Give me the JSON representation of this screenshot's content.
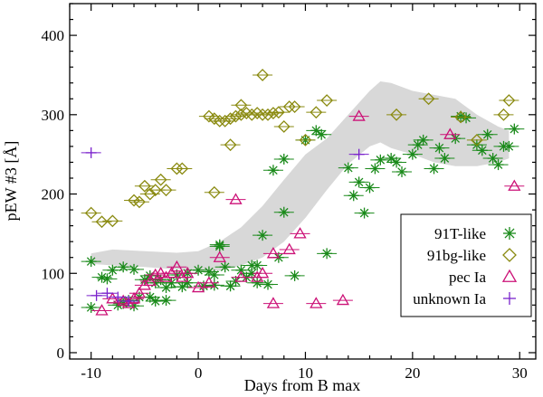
{
  "chart_data": {
    "type": "scatter",
    "title": "",
    "xlabel": "Days from B max",
    "ylabel": "pEW #3 [Å]",
    "xlim": [
      -12,
      31.5
    ],
    "ylim": [
      -8,
      440
    ],
    "xticks": [
      -10,
      0,
      10,
      20,
      30
    ],
    "yticks": [
      0,
      100,
      200,
      300,
      400
    ],
    "xtick_labels": [
      "-10",
      "0",
      "10",
      "20",
      "30"
    ],
    "ytick_labels": [
      "0",
      "100",
      "200",
      "300",
      "400"
    ],
    "legend_position": "bottom-right",
    "band": {
      "color": "#d8d8d8",
      "upper": [
        [
          -10,
          125
        ],
        [
          -8,
          130
        ],
        [
          -5,
          128
        ],
        [
          -2,
          126
        ],
        [
          0,
          128
        ],
        [
          2,
          140
        ],
        [
          4,
          158
        ],
        [
          6,
          185
        ],
        [
          8,
          218
        ],
        [
          10,
          250
        ],
        [
          12,
          270
        ],
        [
          14,
          300
        ],
        [
          16,
          330
        ],
        [
          17,
          342
        ],
        [
          18,
          340
        ],
        [
          20,
          330
        ],
        [
          22,
          325
        ],
        [
          24,
          320
        ],
        [
          26,
          300
        ],
        [
          28,
          285
        ],
        [
          29,
          280
        ]
      ],
      "lower": [
        [
          29,
          245
        ],
        [
          28,
          240
        ],
        [
          26,
          235
        ],
        [
          24,
          235
        ],
        [
          22,
          240
        ],
        [
          20,
          250
        ],
        [
          18,
          258
        ],
        [
          17,
          265
        ],
        [
          16,
          260
        ],
        [
          14,
          238
        ],
        [
          12,
          205
        ],
        [
          10,
          170
        ],
        [
          8,
          140
        ],
        [
          6,
          120
        ],
        [
          4,
          110
        ],
        [
          2,
          103
        ],
        [
          0,
          103
        ],
        [
          -2,
          105
        ],
        [
          -5,
          108
        ],
        [
          -8,
          110
        ],
        [
          -10,
          112
        ]
      ]
    },
    "series": [
      {
        "name": "91T-like",
        "marker": "asterisk",
        "color": "#1a8a1a",
        "points": [
          [
            -10,
            115
          ],
          [
            -10,
            57
          ],
          [
            -9,
            95
          ],
          [
            -8.5,
            93
          ],
          [
            -8,
            104
          ],
          [
            -7.5,
            60
          ],
          [
            -7,
            62
          ],
          [
            -7,
            108
          ],
          [
            -6.5,
            66
          ],
          [
            -6,
            105
          ],
          [
            -6,
            59
          ],
          [
            -5.5,
            70
          ],
          [
            -5,
            92
          ],
          [
            -4.5,
            70
          ],
          [
            -4.5,
            97
          ],
          [
            -4,
            65
          ],
          [
            -4,
            88
          ],
          [
            -3.5,
            92
          ],
          [
            -3,
            82
          ],
          [
            -3,
            66
          ],
          [
            -2.5,
            88
          ],
          [
            -2,
            98
          ],
          [
            -1.5,
            83
          ],
          [
            -1,
            100
          ],
          [
            -1,
            88
          ],
          [
            0,
            104
          ],
          [
            0.5,
            84
          ],
          [
            1,
            102
          ],
          [
            1.5,
            98
          ],
          [
            1.5,
            85
          ],
          [
            2,
            134
          ],
          [
            2,
            136
          ],
          [
            2.5,
            108
          ],
          [
            3,
            84
          ],
          [
            3.5,
            90
          ],
          [
            4,
            104
          ],
          [
            4.5,
            95
          ],
          [
            5,
            110
          ],
          [
            5,
            100
          ],
          [
            5.5,
            88
          ],
          [
            5.5,
            110
          ],
          [
            6,
            148
          ],
          [
            6.5,
            86
          ],
          [
            7,
            230
          ],
          [
            7.5,
            120
          ],
          [
            8,
            177
          ],
          [
            8,
            244
          ],
          [
            9,
            97
          ],
          [
            10,
            268
          ],
          [
            11,
            280
          ],
          [
            11.5,
            275
          ],
          [
            12,
            125
          ],
          [
            14,
            233
          ],
          [
            14.5,
            198
          ],
          [
            15,
            215
          ],
          [
            15.5,
            176
          ],
          [
            16,
            208
          ],
          [
            16.5,
            232
          ],
          [
            17,
            243
          ],
          [
            18,
            245
          ],
          [
            18.5,
            240
          ],
          [
            19,
            228
          ],
          [
            20,
            250
          ],
          [
            20.5,
            262
          ],
          [
            21,
            268
          ],
          [
            22,
            232
          ],
          [
            22.5,
            258
          ],
          [
            23,
            245
          ],
          [
            24,
            270
          ],
          [
            24.5,
            298
          ],
          [
            25,
            296
          ],
          [
            26,
            262
          ],
          [
            26.5,
            255
          ],
          [
            27,
            275
          ],
          [
            27.5,
            245
          ],
          [
            28,
            237
          ],
          [
            28.5,
            260
          ],
          [
            29,
            260
          ],
          [
            29.5,
            282
          ]
        ]
      },
      {
        "name": "91bg-like",
        "marker": "diamond",
        "color": "#8a8a10",
        "points": [
          [
            -10,
            176
          ],
          [
            -9,
            165
          ],
          [
            -8,
            166
          ],
          [
            -6,
            192
          ],
          [
            -5.5,
            190
          ],
          [
            -5,
            210
          ],
          [
            -4.5,
            200
          ],
          [
            -4,
            205
          ],
          [
            -3.5,
            218
          ],
          [
            -3,
            205
          ],
          [
            -2,
            232
          ],
          [
            -1.5,
            232
          ],
          [
            1,
            298
          ],
          [
            1.5,
            295
          ],
          [
            2,
            292
          ],
          [
            2.5,
            292
          ],
          [
            3,
            295
          ],
          [
            3.5,
            298
          ],
          [
            4,
            300
          ],
          [
            4.5,
            302
          ],
          [
            5,
            300
          ],
          [
            5.5,
            302
          ],
          [
            6,
            300
          ],
          [
            6.5,
            300
          ],
          [
            7,
            302
          ],
          [
            7.5,
            303
          ],
          [
            8,
            285
          ],
          [
            8.5,
            310
          ],
          [
            9,
            310
          ],
          [
            10,
            268
          ],
          [
            3,
            262
          ],
          [
            1.5,
            202
          ],
          [
            4,
            312
          ],
          [
            6,
            350
          ],
          [
            11,
            303
          ],
          [
            12,
            318
          ],
          [
            18.5,
            300
          ],
          [
            21.5,
            320
          ],
          [
            24.5,
            297
          ],
          [
            26,
            268
          ],
          [
            28.5,
            300
          ],
          [
            29,
            318
          ]
        ]
      },
      {
        "name": "pec Ia",
        "marker": "triangle",
        "color": "#cc1177",
        "points": [
          [
            -9,
            53
          ],
          [
            -8,
            68
          ],
          [
            -7,
            65
          ],
          [
            -6.5,
            62
          ],
          [
            -6,
            68
          ],
          [
            -5.5,
            75
          ],
          [
            -5,
            85
          ],
          [
            -4.5,
            90
          ],
          [
            -4,
            98
          ],
          [
            -3.5,
            100
          ],
          [
            -3,
            95
          ],
          [
            -2.5,
            100
          ],
          [
            -2,
            108
          ],
          [
            -1.5,
            95
          ],
          [
            -1,
            100
          ],
          [
            0,
            82
          ],
          [
            1,
            88
          ],
          [
            2,
            120
          ],
          [
            3.5,
            193
          ],
          [
            4,
            95
          ],
          [
            5.5,
            95
          ],
          [
            6,
            100
          ],
          [
            7,
            62
          ],
          [
            7,
            125
          ],
          [
            8.5,
            130
          ],
          [
            9.5,
            150
          ],
          [
            11,
            62
          ],
          [
            13.5,
            66
          ],
          [
            15,
            298
          ],
          [
            23.5,
            275
          ],
          [
            29.5,
            210
          ]
        ]
      },
      {
        "name": "unknown Ia",
        "marker": "plus",
        "color": "#7a22cc",
        "points": [
          [
            -10,
            252
          ],
          [
            -9.5,
            72
          ],
          [
            -8.5,
            75
          ],
          [
            -7.5,
            70
          ],
          [
            -6.5,
            65
          ],
          [
            15,
            250
          ]
        ]
      }
    ]
  }
}
